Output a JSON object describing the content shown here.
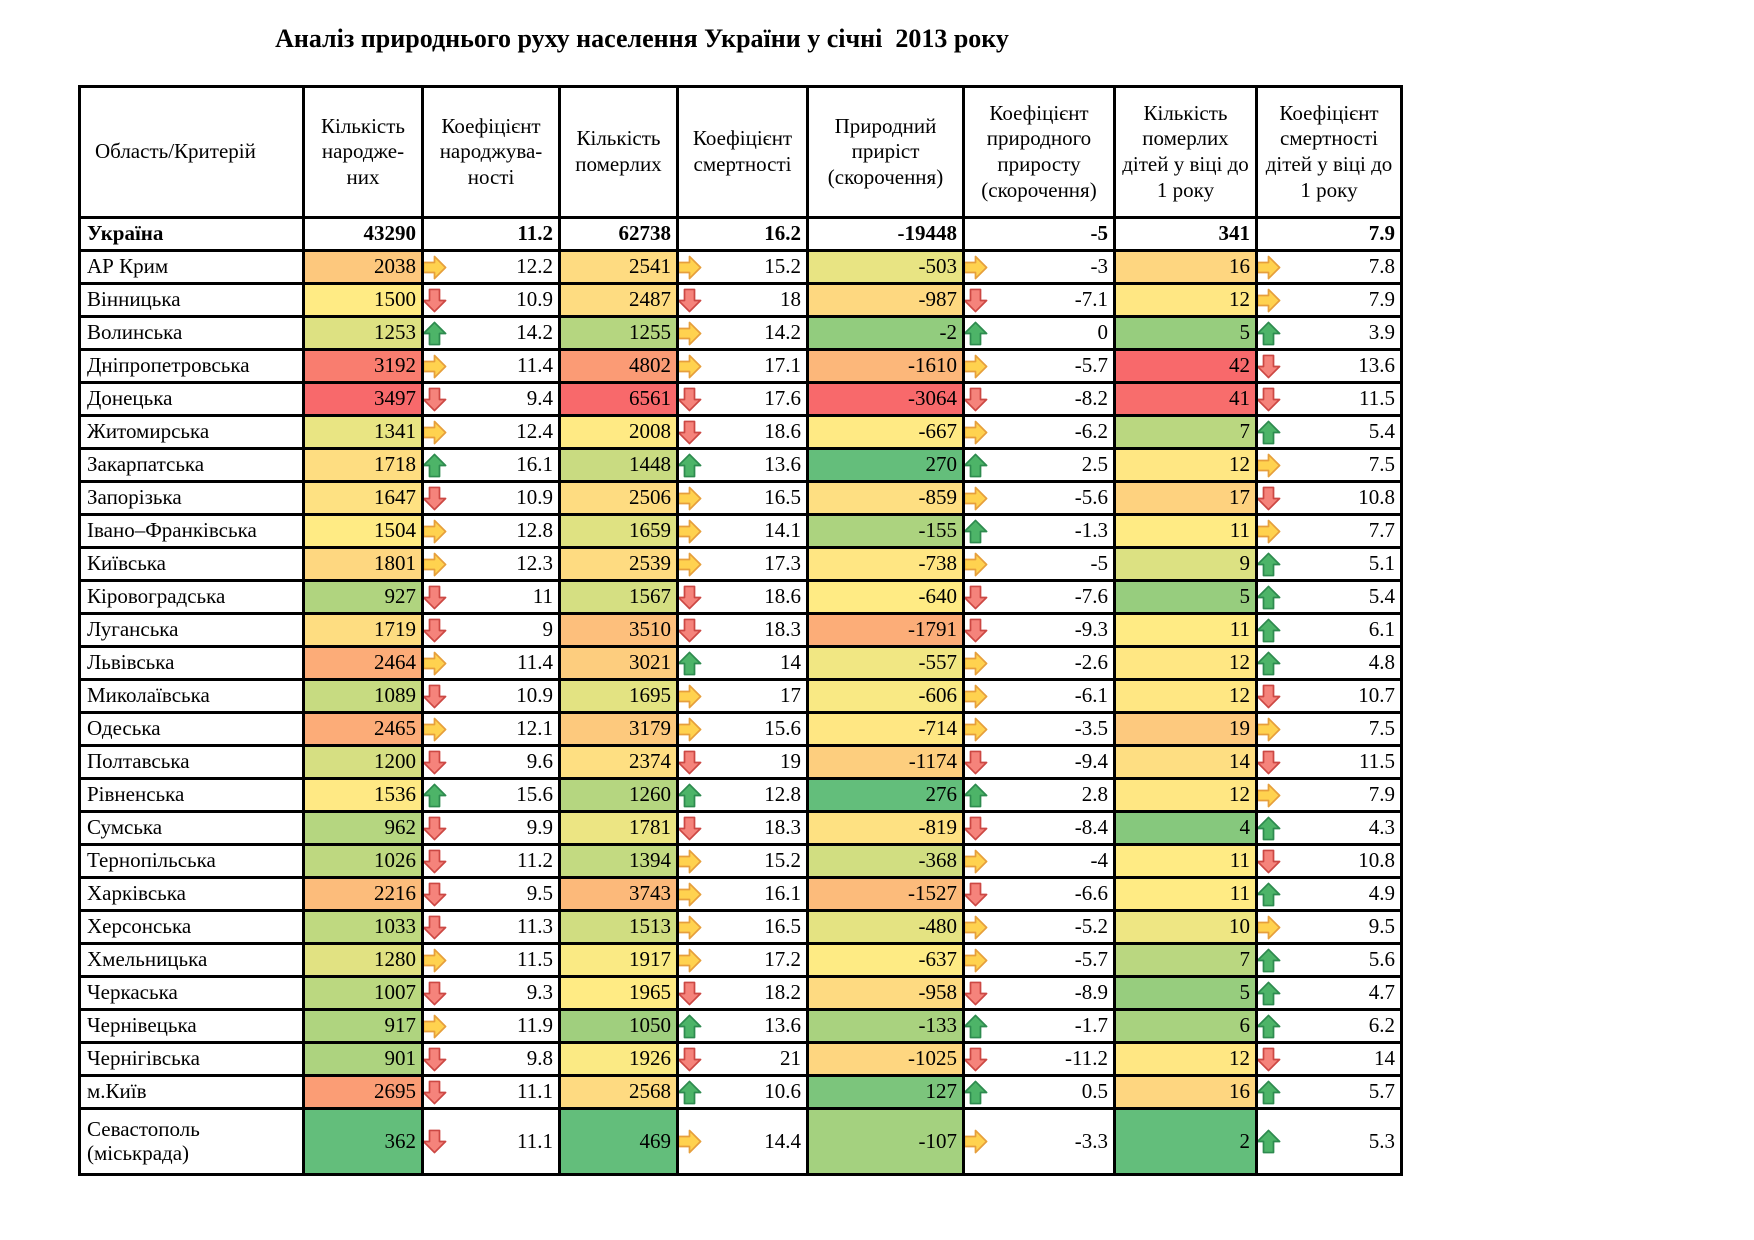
{
  "chart_data": {
    "type": "table",
    "title": "Аналіз природнього руху населення України у січні  2013 року",
    "columns": [
      "Область/Критерій",
      "Кількість народже-них",
      "Коефіцієнт народжува-ності",
      "Кількість померлих",
      "Коефіцієнт смертності",
      "Природний приріст (скорочення)",
      "Коефіцієнт природного приросту (скорочення)",
      "Кількість померлих дітей у віці до 1 року",
      "Коефіцієнт смертності дітей у віці до 1 року"
    ],
    "total_row": {
      "region": "Україна",
      "births": 43290,
      "birth_rate": 11.2,
      "deaths": 62738,
      "death_rate": 16.2,
      "natural_increase": -19448,
      "ni_rate": -5,
      "infant_deaths": 341,
      "infant_rate": 7.9
    },
    "rows": [
      {
        "region": "АР Крим",
        "births": 2038,
        "births_trend": "right",
        "birth_rate": 12.2,
        "deaths": 2541,
        "deaths_trend": "right",
        "death_rate": 15.2,
        "natural_increase": -503,
        "ni_trend": "right",
        "ni_rate": -3,
        "infant_deaths": 16,
        "infant_trend": "right",
        "infant_rate": 7.8
      },
      {
        "region": "Вінницька",
        "births": 1500,
        "births_trend": "down",
        "birth_rate": 10.9,
        "deaths": 2487,
        "deaths_trend": "down",
        "death_rate": 18,
        "natural_increase": -987,
        "ni_trend": "down",
        "ni_rate": -7.1,
        "infant_deaths": 12,
        "infant_trend": "right",
        "infant_rate": 7.9
      },
      {
        "region": "Волинська",
        "births": 1253,
        "births_trend": "up",
        "birth_rate": 14.2,
        "deaths": 1255,
        "deaths_trend": "right",
        "death_rate": 14.2,
        "natural_increase": -2,
        "ni_trend": "up",
        "ni_rate": 0,
        "infant_deaths": 5,
        "infant_trend": "up",
        "infant_rate": 3.9
      },
      {
        "region": "Дніпропетровська",
        "births": 3192,
        "births_trend": "right",
        "birth_rate": 11.4,
        "deaths": 4802,
        "deaths_trend": "right",
        "death_rate": 17.1,
        "natural_increase": -1610,
        "ni_trend": "right",
        "ni_rate": -5.7,
        "infant_deaths": 42,
        "infant_trend": "down",
        "infant_rate": 13.6
      },
      {
        "region": "Донецька",
        "births": 3497,
        "births_trend": "down",
        "birth_rate": 9.4,
        "deaths": 6561,
        "deaths_trend": "down",
        "death_rate": 17.6,
        "natural_increase": -3064,
        "ni_trend": "down",
        "ni_rate": -8.2,
        "infant_deaths": 41,
        "infant_trend": "down",
        "infant_rate": 11.5
      },
      {
        "region": "Житомирська",
        "births": 1341,
        "births_trend": "right",
        "birth_rate": 12.4,
        "deaths": 2008,
        "deaths_trend": "down",
        "death_rate": 18.6,
        "natural_increase": -667,
        "ni_trend": "right",
        "ni_rate": -6.2,
        "infant_deaths": 7,
        "infant_trend": "up",
        "infant_rate": 5.4
      },
      {
        "region": "Закарпатська",
        "births": 1718,
        "births_trend": "up",
        "birth_rate": 16.1,
        "deaths": 1448,
        "deaths_trend": "up",
        "death_rate": 13.6,
        "natural_increase": 270,
        "ni_trend": "up",
        "ni_rate": 2.5,
        "infant_deaths": 12,
        "infant_trend": "right",
        "infant_rate": 7.5
      },
      {
        "region": "Запорізька",
        "births": 1647,
        "births_trend": "down",
        "birth_rate": 10.9,
        "deaths": 2506,
        "deaths_trend": "right",
        "death_rate": 16.5,
        "natural_increase": -859,
        "ni_trend": "right",
        "ni_rate": -5.6,
        "infant_deaths": 17,
        "infant_trend": "down",
        "infant_rate": 10.8
      },
      {
        "region": "Івано–Франківська",
        "births": 1504,
        "births_trend": "right",
        "birth_rate": 12.8,
        "deaths": 1659,
        "deaths_trend": "right",
        "death_rate": 14.1,
        "natural_increase": -155,
        "ni_trend": "up",
        "ni_rate": -1.3,
        "infant_deaths": 11,
        "infant_trend": "right",
        "infant_rate": 7.7
      },
      {
        "region": "Київська",
        "births": 1801,
        "births_trend": "right",
        "birth_rate": 12.3,
        "deaths": 2539,
        "deaths_trend": "right",
        "death_rate": 17.3,
        "natural_increase": -738,
        "ni_trend": "right",
        "ni_rate": -5,
        "infant_deaths": 9,
        "infant_trend": "up",
        "infant_rate": 5.1
      },
      {
        "region": "Кіровоградська",
        "births": 927,
        "births_trend": "down",
        "birth_rate": 11,
        "deaths": 1567,
        "deaths_trend": "down",
        "death_rate": 18.6,
        "natural_increase": -640,
        "ni_trend": "down",
        "ni_rate": -7.6,
        "infant_deaths": 5,
        "infant_trend": "up",
        "infant_rate": 5.4
      },
      {
        "region": "Луганська",
        "births": 1719,
        "births_trend": "down",
        "birth_rate": 9,
        "deaths": 3510,
        "deaths_trend": "down",
        "death_rate": 18.3,
        "natural_increase": -1791,
        "ni_trend": "down",
        "ni_rate": -9.3,
        "infant_deaths": 11,
        "infant_trend": "up",
        "infant_rate": 6.1
      },
      {
        "region": "Львівська",
        "births": 2464,
        "births_trend": "right",
        "birth_rate": 11.4,
        "deaths": 3021,
        "deaths_trend": "up",
        "death_rate": 14,
        "natural_increase": -557,
        "ni_trend": "right",
        "ni_rate": -2.6,
        "infant_deaths": 12,
        "infant_trend": "up",
        "infant_rate": 4.8
      },
      {
        "region": "Миколаївська",
        "births": 1089,
        "births_trend": "down",
        "birth_rate": 10.9,
        "deaths": 1695,
        "deaths_trend": "right",
        "death_rate": 17,
        "natural_increase": -606,
        "ni_trend": "right",
        "ni_rate": -6.1,
        "infant_deaths": 12,
        "infant_trend": "down",
        "infant_rate": 10.7
      },
      {
        "region": "Одеська",
        "births": 2465,
        "births_trend": "right",
        "birth_rate": 12.1,
        "deaths": 3179,
        "deaths_trend": "right",
        "death_rate": 15.6,
        "natural_increase": -714,
        "ni_trend": "right",
        "ni_rate": -3.5,
        "infant_deaths": 19,
        "infant_trend": "right",
        "infant_rate": 7.5
      },
      {
        "region": "Полтавська",
        "births": 1200,
        "births_trend": "down",
        "birth_rate": 9.6,
        "deaths": 2374,
        "deaths_trend": "down",
        "death_rate": 19,
        "natural_increase": -1174,
        "ni_trend": "down",
        "ni_rate": -9.4,
        "infant_deaths": 14,
        "infant_trend": "down",
        "infant_rate": 11.5
      },
      {
        "region": "Рівненська",
        "births": 1536,
        "births_trend": "up",
        "birth_rate": 15.6,
        "deaths": 1260,
        "deaths_trend": "up",
        "death_rate": 12.8,
        "natural_increase": 276,
        "ni_trend": "up",
        "ni_rate": 2.8,
        "infant_deaths": 12,
        "infant_trend": "right",
        "infant_rate": 7.9
      },
      {
        "region": "Сумська",
        "births": 962,
        "births_trend": "down",
        "birth_rate": 9.9,
        "deaths": 1781,
        "deaths_trend": "down",
        "death_rate": 18.3,
        "natural_increase": -819,
        "ni_trend": "down",
        "ni_rate": -8.4,
        "infant_deaths": 4,
        "infant_trend": "up",
        "infant_rate": 4.3
      },
      {
        "region": "Тернопільська",
        "births": 1026,
        "births_trend": "down",
        "birth_rate": 11.2,
        "deaths": 1394,
        "deaths_trend": "right",
        "death_rate": 15.2,
        "natural_increase": -368,
        "ni_trend": "right",
        "ni_rate": -4,
        "infant_deaths": 11,
        "infant_trend": "down",
        "infant_rate": 10.8
      },
      {
        "region": "Харківська",
        "births": 2216,
        "births_trend": "down",
        "birth_rate": 9.5,
        "deaths": 3743,
        "deaths_trend": "right",
        "death_rate": 16.1,
        "natural_increase": -1527,
        "ni_trend": "down",
        "ni_rate": -6.6,
        "infant_deaths": 11,
        "infant_trend": "up",
        "infant_rate": 4.9
      },
      {
        "region": "Херсонська",
        "births": 1033,
        "births_trend": "down",
        "birth_rate": 11.3,
        "deaths": 1513,
        "deaths_trend": "right",
        "death_rate": 16.5,
        "natural_increase": -480,
        "ni_trend": "right",
        "ni_rate": -5.2,
        "infant_deaths": 10,
        "infant_trend": "right",
        "infant_rate": 9.5
      },
      {
        "region": "Хмельницька",
        "births": 1280,
        "births_trend": "right",
        "birth_rate": 11.5,
        "deaths": 1917,
        "deaths_trend": "right",
        "death_rate": 17.2,
        "natural_increase": -637,
        "ni_trend": "right",
        "ni_rate": -5.7,
        "infant_deaths": 7,
        "infant_trend": "up",
        "infant_rate": 5.6
      },
      {
        "region": "Черкаська",
        "births": 1007,
        "births_trend": "down",
        "birth_rate": 9.3,
        "deaths": 1965,
        "deaths_trend": "down",
        "death_rate": 18.2,
        "natural_increase": -958,
        "ni_trend": "down",
        "ni_rate": -8.9,
        "infant_deaths": 5,
        "infant_trend": "up",
        "infant_rate": 4.7
      },
      {
        "region": "Чернівецька",
        "births": 917,
        "births_trend": "right",
        "birth_rate": 11.9,
        "deaths": 1050,
        "deaths_trend": "up",
        "death_rate": 13.6,
        "natural_increase": -133,
        "ni_trend": "up",
        "ni_rate": -1.7,
        "infant_deaths": 6,
        "infant_trend": "up",
        "infant_rate": 6.2
      },
      {
        "region": "Чернігівська",
        "births": 901,
        "births_trend": "down",
        "birth_rate": 9.8,
        "deaths": 1926,
        "deaths_trend": "down",
        "death_rate": 21,
        "natural_increase": -1025,
        "ni_trend": "down",
        "ni_rate": -11.2,
        "infant_deaths": 12,
        "infant_trend": "down",
        "infant_rate": 14
      },
      {
        "region": "м.Київ",
        "births": 2695,
        "births_trend": "down",
        "birth_rate": 11.1,
        "deaths": 2568,
        "deaths_trend": "up",
        "death_rate": 10.6,
        "natural_increase": 127,
        "ni_trend": "up",
        "ni_rate": 0.5,
        "infant_deaths": 16,
        "infant_trend": "up",
        "infant_rate": 5.7
      },
      {
        "region": "Севастополь (міськрада)",
        "births": 362,
        "births_trend": "down",
        "birth_rate": 11.1,
        "deaths": 469,
        "deaths_trend": "right",
        "death_rate": 14.4,
        "natural_increase": -107,
        "ni_trend": "right",
        "ni_rate": -3.3,
        "infant_deaths": 2,
        "infant_trend": "up",
        "infant_rate": 5.3
      }
    ]
  },
  "heatmap": {
    "births": {
      "min": 362,
      "mid": 1500,
      "max": 3497,
      "colors": [
        "#63BE7B",
        "#FFEB84",
        "#F8696B"
      ]
    },
    "deaths": {
      "min": 469,
      "mid": 1965,
      "max": 6561,
      "colors": [
        "#63BE7B",
        "#FFEB84",
        "#F8696B"
      ]
    },
    "natural_increase": {
      "min": -3064,
      "mid": -640,
      "max": 276,
      "colors": [
        "#F8696B",
        "#FFEB84",
        "#63BE7B"
      ]
    },
    "infant_deaths": {
      "min": 2,
      "mid": 11,
      "max": 42,
      "colors": [
        "#63BE7B",
        "#FFEB84",
        "#F8696B"
      ]
    }
  },
  "icon_colors": {
    "up": {
      "fill": "#4DB468",
      "stroke": "#2E8B4F"
    },
    "right": {
      "fill": "#FFD24F",
      "stroke": "#E69F3C"
    },
    "down": {
      "fill": "#F5837B",
      "stroke": "#CC4844"
    }
  }
}
